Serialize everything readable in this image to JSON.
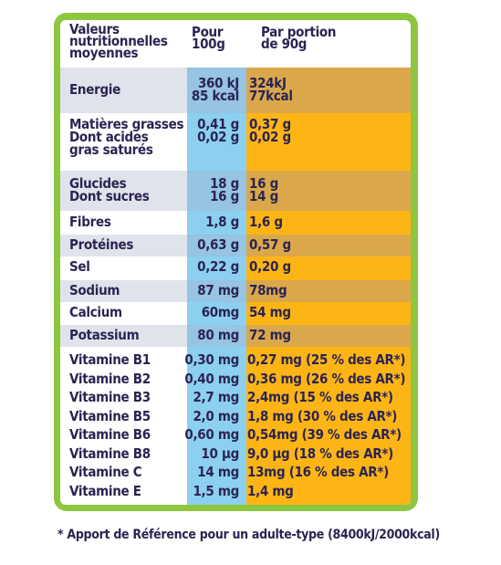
{
  "header": {
    "label": "Valeurs\nnutritionnelles\nmoyennes",
    "per100": "Pour\n100g",
    "per_portion": "Par portion\nde 90g"
  },
  "rows": {
    "energie": {
      "label": "Energie",
      "per100": "360 kJ\n85 kcal",
      "portion": "324kJ\n77kcal"
    },
    "matieres": {
      "label": "Matières grasses\nDont acides\ngras saturés",
      "per100": "0,41 g\n0,02 g",
      "portion": "0,37 g\n0,02 g"
    },
    "glucides": {
      "label": "Glucides\nDont sucres",
      "per100": "18 g\n16 g",
      "portion": "16 g\n14 g"
    },
    "fibres": {
      "label": "Fibres",
      "per100": "1,8 g",
      "portion": "1,6 g"
    },
    "proteines": {
      "label": "Protéines",
      "per100": "0,63 g",
      "portion": "0,57 g"
    },
    "sel": {
      "label": "Sel",
      "per100": "0,22 g",
      "portion": "0,20 g"
    },
    "sodium": {
      "label": "Sodium",
      "per100": "87 mg",
      "portion": "78mg"
    },
    "calcium": {
      "label": "Calcium",
      "per100": "60mg",
      "portion": "54 mg"
    },
    "potassium": {
      "label": "Potassium",
      "per100": "80 mg",
      "portion": "72 mg"
    },
    "vitamines": {
      "label": "Vitamine B1\nVitamine B2\nVitamine B3\nVitamine B5\nVitamine B6\nVitamine B8\nVitamine C\nVitamine E",
      "per100": "0,30 mg\n0,40 mg\n2,7 mg\n2,0 mg\n0,60 mg\n10 µg\n14 mg\n1,5 mg",
      "portion": "0,27 mg (25 % des AR*)\n0,36 mg (26 % des AR*)\n2,4mg (15 % des AR*)\n1,8 mg (30 % des AR*)\n0,54mg (39 % des AR*)\n9,0 µg (18 % des AR*)\n13mg (16 % des AR*)\n1,4 mg"
    }
  },
  "footnote": "* Apport de Référence pour un adulte-type (8400kJ/2000kcal)",
  "colors": {
    "frame": "#8dc63f",
    "per100_column": "#8cd0f0",
    "portion_column": "#fdb515",
    "text": "#2b2452"
  }
}
